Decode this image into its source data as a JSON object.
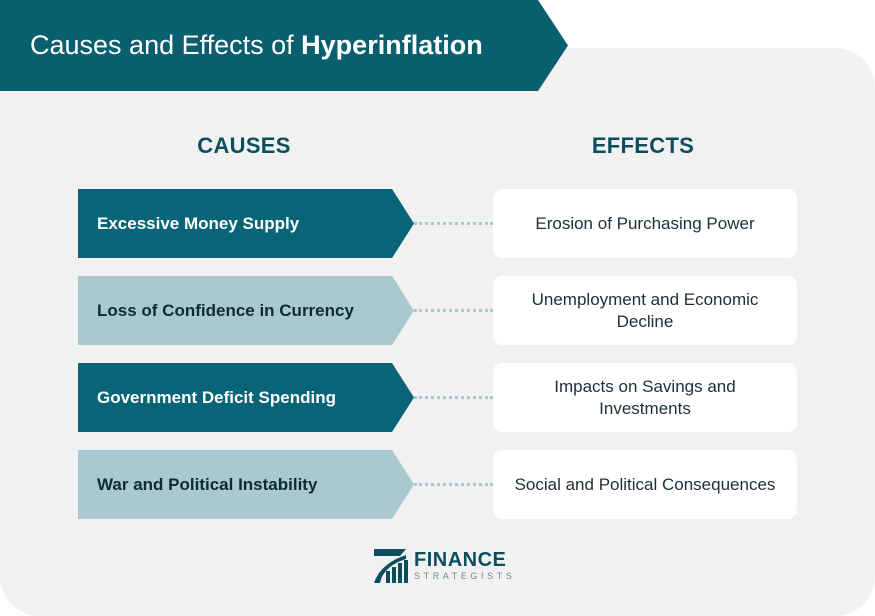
{
  "title": {
    "prefix": "Causes and Effects of ",
    "highlight": "Hyperinflation"
  },
  "columns": {
    "causes_heading": "CAUSES",
    "effects_heading": "EFFECTS"
  },
  "rows": [
    {
      "cause": "Excessive Money Supply",
      "effect": "Erosion of Purchasing Power",
      "style": "dark"
    },
    {
      "cause": "Loss of Confidence in Currency",
      "effect": "Unemployment and Economic Decline",
      "style": "light"
    },
    {
      "cause": "Government Deficit Spending",
      "effect": "Impacts on Savings and Investments",
      "style": "dark"
    },
    {
      "cause": "War and Political Instability",
      "effect": "Social and Political Consequences",
      "style": "light"
    }
  ],
  "logo": {
    "top": "FINANCE",
    "bottom": "STRATEGISTS"
  },
  "colors": {
    "primary": "#0a6478",
    "secondary": "#a9c8cf",
    "heading": "#0b4f5e",
    "background": "#f1f1f1"
  },
  "icons": {
    "logo_mark": "bar-chart-arrow-icon"
  }
}
